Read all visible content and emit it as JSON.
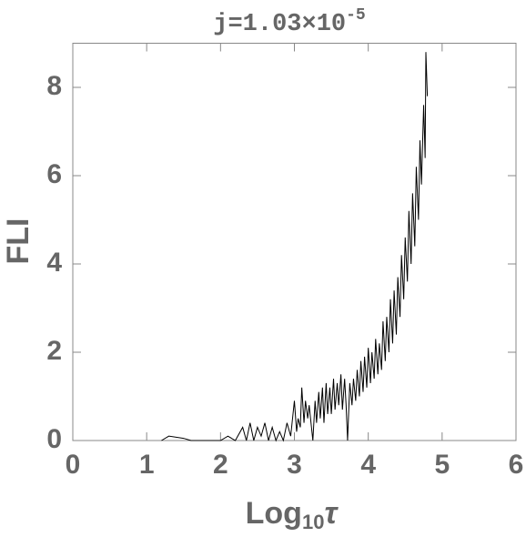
{
  "chart_data": {
    "type": "line",
    "title": {
      "text": "j=1.03×10",
      "superscript": "-5"
    },
    "x_label": {
      "text": "Log",
      "subscript": "10",
      "symbol": "τ"
    },
    "y_label": "FLI",
    "color": "#000000",
    "xlim": [
      0,
      6
    ],
    "xticks": [
      0,
      1,
      2,
      3,
      4,
      5,
      6
    ],
    "ylim": [
      0,
      9
    ],
    "yticks": [
      0,
      2,
      4,
      6,
      8
    ],
    "x": [
      1.2,
      1.3,
      1.5,
      1.6,
      1.65,
      2.0,
      2.1,
      2.2,
      2.3,
      2.35,
      2.4,
      2.45,
      2.5,
      2.55,
      2.6,
      2.65,
      2.7,
      2.75,
      2.8,
      2.85,
      2.9,
      2.95,
      3.0,
      3.03,
      3.05,
      3.08,
      3.1,
      3.13,
      3.15,
      3.18,
      3.2,
      3.25,
      3.28,
      3.3,
      3.33,
      3.35,
      3.38,
      3.4,
      3.43,
      3.45,
      3.48,
      3.5,
      3.53,
      3.55,
      3.58,
      3.6,
      3.63,
      3.65,
      3.68,
      3.7,
      3.72,
      3.75,
      3.78,
      3.8,
      3.83,
      3.85,
      3.88,
      3.9,
      3.93,
      3.95,
      3.98,
      4.0,
      4.03,
      4.05,
      4.08,
      4.1,
      4.13,
      4.15,
      4.18,
      4.2,
      4.23,
      4.25,
      4.28,
      4.3,
      4.33,
      4.35,
      4.38,
      4.4,
      4.43,
      4.45,
      4.48,
      4.5,
      4.53,
      4.55,
      4.58,
      4.6,
      4.63,
      4.65,
      4.68,
      4.7,
      4.72,
      4.75,
      4.77,
      4.78,
      4.8
    ],
    "values": [
      0,
      0.1,
      0.05,
      0,
      0,
      0,
      0.1,
      0,
      0.3,
      0,
      0.4,
      0,
      0.3,
      0.1,
      0.4,
      0,
      0.3,
      0,
      0.2,
      0,
      0.4,
      0.1,
      0.9,
      0.2,
      0.5,
      0.3,
      1.2,
      0.4,
      0.9,
      0.5,
      0.8,
      0,
      0.9,
      0.4,
      1.1,
      0.5,
      1.2,
      0.4,
      1.3,
      0.6,
      1.2,
      0.6,
      1.4,
      0.7,
      1.3,
      0.8,
      1.5,
      0.7,
      1.4,
      0.8,
      0,
      1.3,
      0.8,
      1.4,
      0.9,
      1.6,
      1.0,
      1.8,
      1.1,
      1.9,
      1.2,
      2.1,
      1.3,
      2.0,
      1.4,
      2.3,
      1.5,
      2.2,
      1.6,
      2.7,
      1.8,
      2.8,
      2.0,
      3.2,
      2.2,
      3.4,
      2.4,
      3.7,
      2.8,
      4.2,
      3.2,
      4.6,
      3.6,
      5.2,
      4.0,
      5.6,
      4.4,
      6.2,
      5.0,
      6.8,
      5.8,
      7.6,
      6.4,
      8.8,
      7.8
    ]
  }
}
